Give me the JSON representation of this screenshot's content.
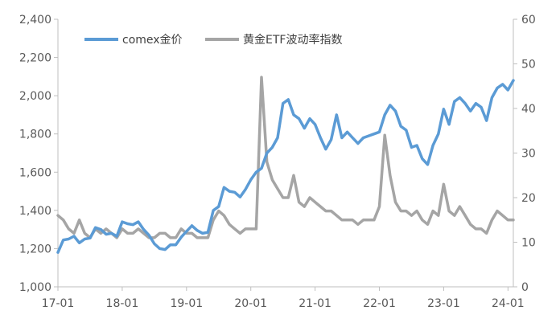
{
  "chart_data": {
    "type": "line",
    "title": "",
    "legend": {
      "position": "top-left",
      "entries": [
        "comex金价",
        "黄金ETF波动率指数"
      ]
    },
    "grid": false,
    "x_axis": {
      "type": "date",
      "range": [
        "2017-01",
        "2024-02"
      ],
      "tick_labels": [
        "17-01",
        "18-01",
        "19-01",
        "20-01",
        "21-01",
        "22-01",
        "23-01",
        "24-01"
      ]
    },
    "y_axis_left": {
      "range": [
        1000,
        2400
      ],
      "tick_values": [
        1000,
        1200,
        1400,
        1600,
        1800,
        2000,
        2200,
        2400
      ],
      "tick_labels": [
        "1,000",
        "1,200",
        "1,400",
        "1,600",
        "1,800",
        "2,000",
        "2,200",
        "2,400"
      ]
    },
    "y_axis_right": {
      "range": [
        0,
        60
      ],
      "tick_values": [
        0,
        10,
        20,
        30,
        40,
        50,
        60
      ],
      "tick_labels": [
        "0",
        "10",
        "20",
        "30",
        "40",
        "50",
        "60"
      ]
    },
    "colors": {
      "comex": "#5b9bd5",
      "etf": "#a5a5a5",
      "axis": "#bfbfbf",
      "text": "#595959"
    },
    "series": [
      {
        "name": "comex金价",
        "axis": "left",
        "x": [
          "2017-01",
          "2017-02",
          "2017-03",
          "2017-04",
          "2017-05",
          "2017-06",
          "2017-07",
          "2017-08",
          "2017-09",
          "2017-10",
          "2017-11",
          "2017-12",
          "2018-01",
          "2018-02",
          "2018-03",
          "2018-04",
          "2018-05",
          "2018-06",
          "2018-07",
          "2018-08",
          "2018-09",
          "2018-10",
          "2018-11",
          "2018-12",
          "2019-01",
          "2019-02",
          "2019-03",
          "2019-04",
          "2019-05",
          "2019-06",
          "2019-07",
          "2019-08",
          "2019-09",
          "2019-10",
          "2019-11",
          "2019-12",
          "2020-01",
          "2020-02",
          "2020-03",
          "2020-04",
          "2020-05",
          "2020-06",
          "2020-07",
          "2020-08",
          "2020-09",
          "2020-10",
          "2020-11",
          "2020-12",
          "2021-01",
          "2021-02",
          "2021-03",
          "2021-04",
          "2021-05",
          "2021-06",
          "2021-07",
          "2021-08",
          "2021-09",
          "2021-10",
          "2021-11",
          "2021-12",
          "2022-01",
          "2022-02",
          "2022-03",
          "2022-04",
          "2022-05",
          "2022-06",
          "2022-07",
          "2022-08",
          "2022-09",
          "2022-10",
          "2022-11",
          "2022-12",
          "2023-01",
          "2023-02",
          "2023-03",
          "2023-04",
          "2023-05",
          "2023-06",
          "2023-07",
          "2023-08",
          "2023-09",
          "2023-10",
          "2023-11",
          "2023-12",
          "2024-01",
          "2024-02"
        ],
        "values": [
          1180,
          1245,
          1250,
          1265,
          1230,
          1250,
          1255,
          1310,
          1300,
          1275,
          1280,
          1265,
          1340,
          1330,
          1325,
          1340,
          1300,
          1270,
          1225,
          1200,
          1195,
          1220,
          1220,
          1260,
          1290,
          1320,
          1295,
          1280,
          1285,
          1400,
          1420,
          1520,
          1500,
          1495,
          1470,
          1510,
          1560,
          1600,
          1620,
          1700,
          1730,
          1780,
          1960,
          1980,
          1900,
          1880,
          1830,
          1880,
          1850,
          1780,
          1720,
          1770,
          1900,
          1780,
          1810,
          1780,
          1750,
          1780,
          1790,
          1800,
          1810,
          1900,
          1950,
          1920,
          1840,
          1820,
          1730,
          1740,
          1670,
          1640,
          1740,
          1800,
          1930,
          1850,
          1970,
          1990,
          1960,
          1920,
          1960,
          1940,
          1870,
          1990,
          2040,
          2060,
          2030,
          2080
        ]
      },
      {
        "name": "黄金ETF波动率指数",
        "axis": "right",
        "x": [
          "2017-01",
          "2017-02",
          "2017-03",
          "2017-04",
          "2017-05",
          "2017-06",
          "2017-07",
          "2017-08",
          "2017-09",
          "2017-10",
          "2017-11",
          "2017-12",
          "2018-01",
          "2018-02",
          "2018-03",
          "2018-04",
          "2018-05",
          "2018-06",
          "2018-07",
          "2018-08",
          "2018-09",
          "2018-10",
          "2018-11",
          "2018-12",
          "2019-01",
          "2019-02",
          "2019-03",
          "2019-04",
          "2019-05",
          "2019-06",
          "2019-07",
          "2019-08",
          "2019-09",
          "2019-10",
          "2019-11",
          "2019-12",
          "2020-01",
          "2020-02",
          "2020-03",
          "2020-04",
          "2020-05",
          "2020-06",
          "2020-07",
          "2020-08",
          "2020-09",
          "2020-10",
          "2020-11",
          "2020-12",
          "2021-01",
          "2021-02",
          "2021-03",
          "2021-04",
          "2021-05",
          "2021-06",
          "2021-07",
          "2021-08",
          "2021-09",
          "2021-10",
          "2021-11",
          "2021-12",
          "2022-01",
          "2022-02",
          "2022-03",
          "2022-04",
          "2022-05",
          "2022-06",
          "2022-07",
          "2022-08",
          "2022-09",
          "2022-10",
          "2022-11",
          "2022-12",
          "2023-01",
          "2023-02",
          "2023-03",
          "2023-04",
          "2023-05",
          "2023-06",
          "2023-07",
          "2023-08",
          "2023-09",
          "2023-10",
          "2023-11",
          "2023-12",
          "2024-01",
          "2024-02"
        ],
        "values": [
          16,
          15,
          13,
          12,
          15,
          12,
          11,
          13,
          12,
          13,
          12,
          11,
          13,
          12,
          12,
          13,
          12,
          11,
          11,
          12,
          12,
          11,
          11,
          13,
          12,
          12,
          11,
          11,
          11,
          15,
          17,
          16,
          14,
          13,
          12,
          13,
          13,
          13,
          47,
          28,
          24,
          22,
          20,
          20,
          25,
          19,
          18,
          20,
          19,
          18,
          17,
          17,
          16,
          15,
          15,
          15,
          14,
          15,
          15,
          15,
          18,
          34,
          25,
          19,
          17,
          17,
          16,
          17,
          15,
          14,
          17,
          16,
          23,
          17,
          16,
          18,
          16,
          14,
          13,
          13,
          12,
          15,
          17,
          16,
          15,
          15
        ]
      }
    ]
  }
}
